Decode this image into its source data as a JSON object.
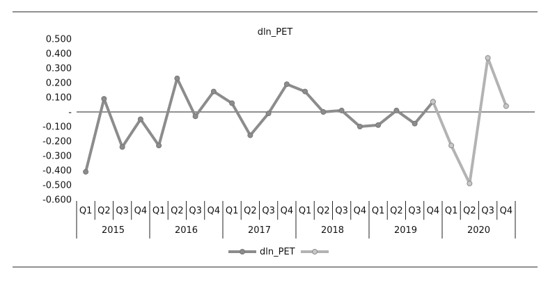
{
  "chart_data": {
    "type": "line",
    "title": "dln_PET",
    "xlabel": "",
    "ylabel": "",
    "ylim": [
      -0.6,
      0.5
    ],
    "yticks": [
      {
        "value": 0.5,
        "label": "0.500"
      },
      {
        "value": 0.4,
        "label": "0.400"
      },
      {
        "value": 0.3,
        "label": "0.300"
      },
      {
        "value": 0.2,
        "label": "0.200"
      },
      {
        "value": 0.1,
        "label": "0.100"
      },
      {
        "value": 0.0,
        "label": "-"
      },
      {
        "value": -0.1,
        "label": "-0.100"
      },
      {
        "value": -0.2,
        "label": "-0.200"
      },
      {
        "value": -0.3,
        "label": "-0.300"
      },
      {
        "value": -0.4,
        "label": "-0.400"
      },
      {
        "value": -0.5,
        "label": "-0.500"
      },
      {
        "value": -0.6,
        "label": "-0.600"
      }
    ],
    "categories": [
      "Q1",
      "Q2",
      "Q3",
      "Q4",
      "Q1",
      "Q2",
      "Q3",
      "Q4",
      "Q1",
      "Q2",
      "Q3",
      "Q4",
      "Q1",
      "Q2",
      "Q3",
      "Q4",
      "Q1",
      "Q2",
      "Q3",
      "Q4",
      "Q1",
      "Q2",
      "Q3",
      "Q4"
    ],
    "years": [
      "2015",
      "2016",
      "2017",
      "2018",
      "2019",
      "2020"
    ],
    "series": [
      {
        "name": "dln_PET",
        "color": "#8c8c8c",
        "marker_fill": "#8c8c8c",
        "values": [
          -0.41,
          0.09,
          -0.24,
          -0.05,
          -0.23,
          0.23,
          -0.03,
          0.14,
          0.06,
          -0.16,
          -0.01,
          0.19,
          0.14,
          0.0,
          0.01,
          -0.1,
          -0.09,
          0.01,
          -0.08,
          0.07,
          null,
          null,
          null,
          null
        ]
      },
      {
        "name": "",
        "color": "#b3b3b3",
        "marker_fill": "#c8c8c8",
        "values": [
          null,
          null,
          null,
          null,
          null,
          null,
          null,
          null,
          null,
          null,
          null,
          null,
          null,
          null,
          null,
          null,
          null,
          null,
          null,
          0.07,
          -0.23,
          -0.49,
          0.37,
          0.04
        ]
      }
    ],
    "grid": false,
    "legend": "bottom-center"
  }
}
